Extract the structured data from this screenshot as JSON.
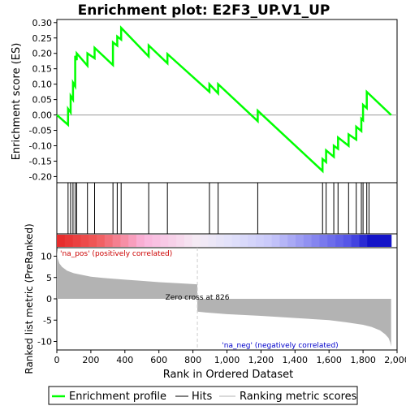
{
  "title": "Enrichment plot: E2F3_UP.V1_UP",
  "colors": {
    "es_line": "#00ff00",
    "hits": "#000000",
    "metric_fill": "#b3b3b3",
    "pos_label": "#cc0000",
    "neg_label": "#0000cc",
    "zero_line": "#cccccc"
  },
  "chart_data": [
    {
      "type": "line",
      "name": "enrichment-profile",
      "ylabel": "Enrichment score (ES)",
      "xlim": [
        0,
        2000
      ],
      "ylim": [
        -0.22,
        0.31
      ],
      "yticks": [
        "0.30",
        "0.25",
        "0.20",
        "0.15",
        "0.10",
        "0.05",
        "0.00",
        "-0.05",
        "-0.10",
        "-0.15",
        "-0.20"
      ],
      "x": [
        0,
        66,
        66,
        81,
        81,
        95,
        95,
        108,
        108,
        117,
        117,
        180,
        180,
        222,
        222,
        330,
        330,
        355,
        355,
        378,
        378,
        540,
        540,
        650,
        650,
        897,
        897,
        948,
        948,
        1181,
        1181,
        1562,
        1562,
        1583,
        1583,
        1628,
        1628,
        1653,
        1653,
        1715,
        1715,
        1760,
        1760,
        1790,
        1790,
        1800,
        1800,
        1822,
        1822,
        1965
      ],
      "y": [
        0,
        -0.032,
        0.02,
        0.008,
        0.062,
        0.05,
        0.105,
        0.093,
        0.192,
        0.178,
        0.2,
        0.16,
        0.2,
        0.184,
        0.218,
        0.162,
        0.236,
        0.225,
        0.255,
        0.245,
        0.283,
        0.19,
        0.226,
        0.168,
        0.198,
        0.075,
        0.1,
        0.07,
        0.1,
        -0.02,
        0.014,
        -0.182,
        -0.143,
        -0.153,
        -0.115,
        -0.136,
        -0.1,
        -0.11,
        -0.073,
        -0.1,
        -0.063,
        -0.08,
        -0.038,
        -0.052,
        -0.012,
        -0.017,
        0.033,
        0.022,
        0.075,
        0.0
      ]
    },
    {
      "type": "scatter",
      "name": "hits",
      "x": [
        66,
        81,
        95,
        108,
        117,
        180,
        222,
        330,
        355,
        378,
        540,
        650,
        897,
        948,
        1181,
        1562,
        1583,
        1628,
        1653,
        1715,
        1760,
        1790,
        1800,
        1822,
        1835
      ]
    },
    {
      "type": "area",
      "name": "ranking-metric",
      "xlabel": "Rank in Ordered Dataset",
      "ylabel": "Ranked list metric (PreRanked)",
      "xlim": [
        0,
        2000
      ],
      "ylim": [
        -12,
        12
      ],
      "xticks": [
        "0",
        "200",
        "400",
        "600",
        "800",
        "1,000",
        "1,200",
        "1,400",
        "1,600",
        "1,800",
        "2,000"
      ],
      "yticks": [
        "10",
        "5",
        "0",
        "-5",
        "-10"
      ],
      "x": [
        0,
        5,
        15,
        30,
        60,
        100,
        150,
        200,
        300,
        400,
        500,
        600,
        700,
        826,
        826,
        900,
        1000,
        1200,
        1400,
        1600,
        1700,
        1800,
        1850,
        1900,
        1930,
        1950,
        1960,
        1965
      ],
      "y": [
        11.5,
        9.5,
        8.3,
        7.5,
        6.6,
        6.0,
        5.6,
        5.2,
        4.8,
        4.5,
        4.2,
        3.9,
        3.7,
        3.4,
        -3.0,
        -3.3,
        -3.6,
        -4.0,
        -4.5,
        -5.0,
        -5.5,
        -6.1,
        -6.6,
        -7.4,
        -8.3,
        -9.2,
        -10.2,
        -11.2
      ],
      "zero_cross": 826,
      "zero_cross_label": "Zero cross at 826",
      "pos_label": "'na_pos' (positively correlated)",
      "neg_label": "'na_neg' (negatively correlated)"
    }
  ],
  "legend": {
    "items": [
      {
        "label": "Enrichment profile",
        "color": "#00ff00"
      },
      {
        "label": "Hits",
        "color": "#000000"
      },
      {
        "label": "Ranking metric scores",
        "color": "#b3b3b3"
      }
    ]
  }
}
